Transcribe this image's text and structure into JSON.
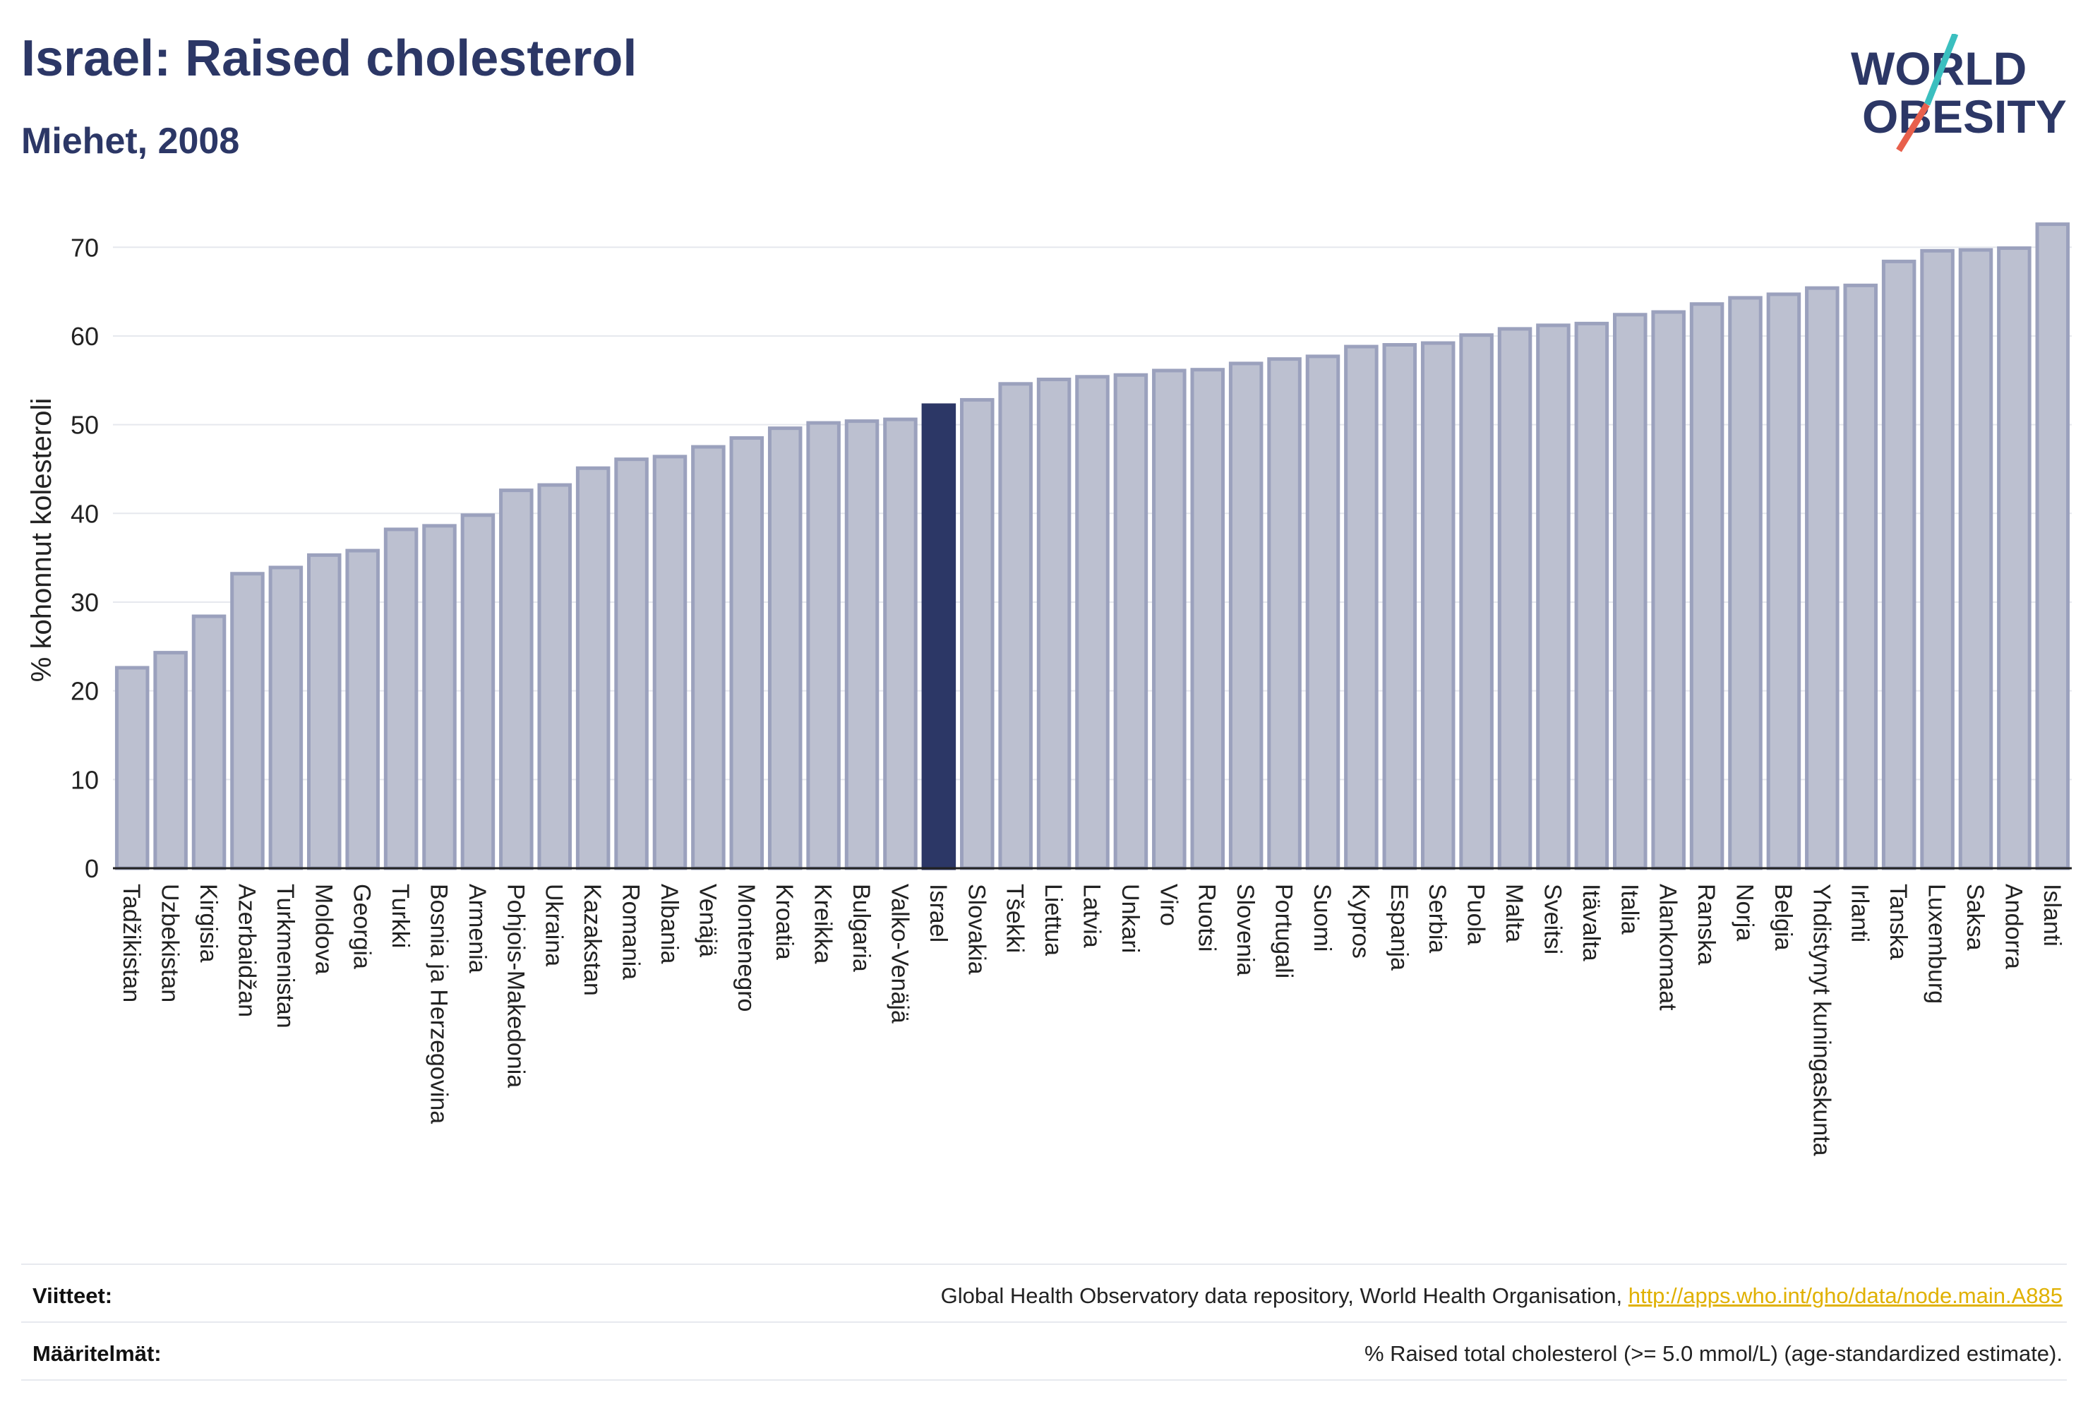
{
  "header": {
    "title": "Israel: Raised cholesterol",
    "subtitle": "Miehet, 2008"
  },
  "logo": {
    "line1": "WORLD",
    "line2": "OBESITY",
    "colors": {
      "text": "#2c3766",
      "slash_teal": "#3bbfbf",
      "slash_red": "#e8604c"
    }
  },
  "colors": {
    "bar_fill": "#bcc0d0",
    "bar_stroke": "#9ba1bd",
    "highlight_fill": "#2c3766",
    "grid": "#e6e8ee",
    "axis": "#222222"
  },
  "chart_data": {
    "type": "bar",
    "title": "Israel: Raised cholesterol",
    "subtitle": "Miehet, 2008",
    "xlabel": "",
    "ylabel": "% kohonnut kolesteroli",
    "ylim": [
      0,
      74
    ],
    "yticks": [
      0,
      10,
      20,
      30,
      40,
      50,
      60,
      70
    ],
    "grid": true,
    "highlight": "Israel",
    "categories": [
      "Tadžikistan",
      "Uzbekistan",
      "Kirgisia",
      "Azerbaidžan",
      "Turkmenistan",
      "Moldova",
      "Georgia",
      "Turkki",
      "Bosnia ja Herzegovina",
      "Armenia",
      "Pohjois-Makedonia",
      "Ukraina",
      "Kazakstan",
      "Romania",
      "Albania",
      "Venäjä",
      "Montenegro",
      "Kroatia",
      "Kreikka",
      "Bulgaria",
      "Valko-Venäjä",
      "Israel",
      "Slovakia",
      "Tšekki",
      "Liettua",
      "Latvia",
      "Unkari",
      "Viro",
      "Ruotsi",
      "Slovenia",
      "Portugali",
      "Suomi",
      "Kypros",
      "Espanja",
      "Serbia",
      "Puola",
      "Malta",
      "Sveitsi",
      "Itävalta",
      "Italia",
      "Alankomaat",
      "Ranska",
      "Norja",
      "Belgia",
      "Yhdistynyt kuningaskunta",
      "Irlanti",
      "Tanska",
      "Luxemburg",
      "Saksa",
      "Andorra",
      "Islanti"
    ],
    "values": [
      22.6,
      24.3,
      28.4,
      33.2,
      33.9,
      35.3,
      35.8,
      38.2,
      38.6,
      39.8,
      42.6,
      43.2,
      45.1,
      46.1,
      46.4,
      47.5,
      48.5,
      49.6,
      50.2,
      50.4,
      50.6,
      52.2,
      52.8,
      54.6,
      55.1,
      55.4,
      55.6,
      56.1,
      56.2,
      56.9,
      57.4,
      57.7,
      58.8,
      59.0,
      59.2,
      60.1,
      60.8,
      61.2,
      61.4,
      62.4,
      62.7,
      63.6,
      64.3,
      64.7,
      65.4,
      65.7,
      68.4,
      69.6,
      69.7,
      69.9,
      72.6
    ]
  },
  "footer": {
    "references_label": "Viitteet:",
    "references_text": "Global Health Observatory data repository, World Health Organisation, ",
    "references_link": "http://apps.who.int/gho/data/node.main.A885",
    "definitions_label": "Määritelmät:",
    "definitions_text": "% Raised total cholesterol (>= 5.0 mmol/L) (age-standardized estimate)."
  }
}
